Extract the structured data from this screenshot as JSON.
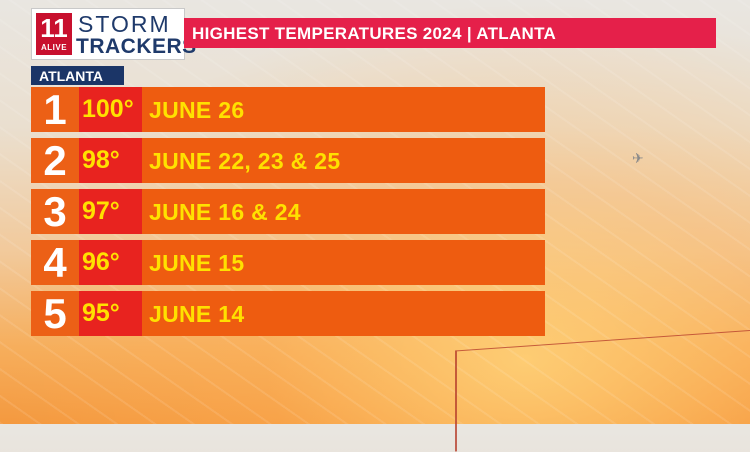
{
  "logo": {
    "badge_number": "11",
    "badge_text": "ALIVE",
    "line1": "STORM",
    "line2": "TRACKERS"
  },
  "header": {
    "title": "HIGHEST TEMPERATURES 2024 | ATLANTA"
  },
  "location_tab": "ATLANTA",
  "rankings": [
    {
      "rank": "1",
      "temp": "100°",
      "dates": "JUNE 26"
    },
    {
      "rank": "2",
      "temp": "98°",
      "dates": "JUNE 22, 23 & 25"
    },
    {
      "rank": "3",
      "temp": "97°",
      "dates": "JUNE 16 & 24"
    },
    {
      "rank": "4",
      "temp": "96°",
      "dates": "JUNE 15"
    },
    {
      "rank": "5",
      "temp": "95°",
      "dates": "JUNE 14"
    }
  ],
  "colors": {
    "header_bar": "#e5204a",
    "location_tab": "#1b3567",
    "rank_cell": "#ec6016",
    "temp_cell": "#e8231f",
    "date_cell": "#ee5c10",
    "value_text": "#ffe100"
  }
}
